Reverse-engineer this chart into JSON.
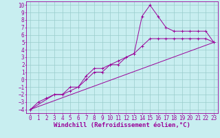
{
  "xlabel": "Windchill (Refroidissement éolien,°C)",
  "xlim": [
    -0.5,
    23.5
  ],
  "ylim": [
    -4.5,
    10.5
  ],
  "xticks": [
    0,
    1,
    2,
    3,
    4,
    5,
    6,
    7,
    8,
    9,
    10,
    11,
    12,
    13,
    14,
    15,
    16,
    17,
    18,
    19,
    20,
    21,
    22,
    23
  ],
  "yticks": [
    -4,
    -3,
    -2,
    -1,
    0,
    1,
    2,
    3,
    4,
    5,
    6,
    7,
    8,
    9,
    10
  ],
  "bg_color": "#c8eef0",
  "line_color": "#990099",
  "grid_color": "#99cccc",
  "line1_x": [
    0,
    1,
    2,
    3,
    4,
    5,
    6,
    7,
    8,
    9,
    10,
    11,
    12,
    13,
    14,
    15,
    16,
    17,
    18,
    19,
    20,
    21,
    22,
    23
  ],
  "line1_y": [
    -4,
    -3,
    -2.5,
    -2,
    -2,
    -1,
    -1,
    0,
    1,
    1,
    2,
    2,
    3,
    3.5,
    8.5,
    10,
    8.5,
    7,
    6.5,
    6.5,
    6.5,
    6.5,
    6.5,
    5
  ],
  "line2_x": [
    0,
    3,
    4,
    5,
    6,
    7,
    8,
    9,
    10,
    11,
    12,
    13,
    14,
    15,
    16,
    17,
    18,
    19,
    20,
    21,
    22,
    23
  ],
  "line2_y": [
    -4,
    -2,
    -2,
    -1.5,
    -1,
    0.5,
    1.5,
    1.5,
    2,
    2.5,
    3,
    3.5,
    4.5,
    5.5,
    5.5,
    5.5,
    5.5,
    5.5,
    5.5,
    5.5,
    5.5,
    5
  ],
  "line3_x": [
    0,
    23
  ],
  "line3_y": [
    -4,
    5
  ],
  "fontsize_tick": 5.5,
  "fontsize_label": 6.5
}
